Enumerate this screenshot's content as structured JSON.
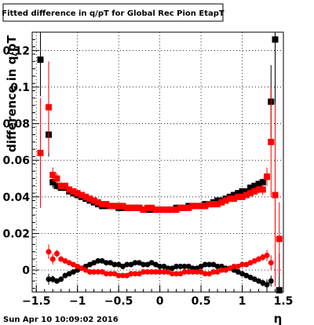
{
  "chart_data": {
    "type": "scatter",
    "title": "Fitted difference in q/pT for Global Rec Pion EtapT",
    "xlabel": "η",
    "ylabel": "difference in q/pT",
    "xlim": [
      -1.55,
      1.5
    ],
    "ylim": [
      -0.012,
      0.13
    ],
    "grid": true,
    "x_ticks": [
      -1.5,
      -1,
      -0.5,
      0,
      0.5,
      1,
      1.5
    ],
    "x_tick_labels": [
      "−1.5",
      "−1",
      "−0.5",
      "0",
      "0.5",
      "1",
      "1.5"
    ],
    "y_ticks": [
      0,
      0.02,
      0.04,
      0.06,
      0.08,
      0.1,
      0.12
    ],
    "y_tick_labels": [
      "0",
      "0.02",
      "0.04",
      "0.06",
      "0.08",
      "0.1",
      "0.12"
    ],
    "series": [
      {
        "color": "#000000",
        "x": [
          -1.45,
          -1.35,
          -1.3,
          -1.25,
          -1.2,
          -1.15,
          -1.1,
          -1.05,
          -1.0,
          -0.95,
          -0.9,
          -0.85,
          -0.8,
          -0.75,
          -0.7,
          -0.65,
          -0.6,
          -0.55,
          -0.5,
          -0.45,
          -0.4,
          -0.35,
          -0.3,
          -0.25,
          -0.2,
          -0.15,
          -0.1,
          -0.05,
          0.0,
          0.05,
          0.1,
          0.15,
          0.2,
          0.25,
          0.3,
          0.35,
          0.4,
          0.45,
          0.5,
          0.55,
          0.6,
          0.65,
          0.7,
          0.75,
          0.8,
          0.85,
          0.9,
          0.95,
          1.0,
          1.05,
          1.1,
          1.15,
          1.2,
          1.25,
          1.3,
          1.35,
          1.4,
          1.45
        ],
        "y": [
          0.115,
          0.074,
          0.048,
          0.046,
          0.045,
          0.045,
          0.043,
          0.042,
          0.041,
          0.04,
          0.039,
          0.038,
          0.037,
          0.036,
          0.035,
          0.035,
          0.035,
          0.035,
          0.034,
          0.034,
          0.034,
          0.034,
          0.034,
          0.034,
          0.033,
          0.033,
          0.033,
          0.033,
          0.033,
          0.033,
          0.033,
          0.033,
          0.034,
          0.034,
          0.034,
          0.035,
          0.035,
          0.035,
          0.035,
          0.036,
          0.036,
          0.037,
          0.038,
          0.038,
          0.039,
          0.04,
          0.041,
          0.042,
          0.043,
          0.043,
          0.045,
          0.046,
          0.047,
          0.048,
          0.051,
          0.092,
          0.126,
          -0.011
        ],
        "yerr": [
          0.02,
          0.012,
          0.003,
          0.002,
          0.0015,
          0.0015,
          0.0012,
          0.001,
          0.001,
          0.001,
          0.001,
          0.001,
          0.001,
          0.001,
          0.001,
          0.001,
          0.001,
          0.001,
          0.001,
          0.001,
          0.001,
          0.001,
          0.001,
          0.001,
          0.001,
          0.001,
          0.001,
          0.001,
          0.001,
          0.001,
          0.001,
          0.001,
          0.001,
          0.001,
          0.001,
          0.001,
          0.001,
          0.001,
          0.001,
          0.001,
          0.001,
          0.001,
          0.001,
          0.001,
          0.001,
          0.001,
          0.001,
          0.001,
          0.001,
          0.0012,
          0.0015,
          0.0015,
          0.002,
          0.002,
          0.003,
          0.02,
          0.04,
          0.02
        ]
      },
      {
        "color": "#ff0000",
        "x": [
          -1.45,
          -1.35,
          -1.3,
          -1.25,
          -1.2,
          -1.15,
          -1.1,
          -1.05,
          -1.0,
          -0.95,
          -0.9,
          -0.85,
          -0.8,
          -0.75,
          -0.7,
          -0.65,
          -0.6,
          -0.55,
          -0.5,
          -0.45,
          -0.4,
          -0.35,
          -0.3,
          -0.25,
          -0.2,
          -0.15,
          -0.1,
          -0.05,
          0.0,
          0.05,
          0.1,
          0.15,
          0.2,
          0.25,
          0.3,
          0.35,
          0.4,
          0.45,
          0.5,
          0.55,
          0.6,
          0.65,
          0.7,
          0.75,
          0.8,
          0.85,
          0.9,
          0.95,
          1.0,
          1.05,
          1.1,
          1.15,
          1.2,
          1.25,
          1.3,
          1.35,
          1.4,
          1.45
        ],
        "y": [
          0.064,
          0.089,
          0.052,
          0.05,
          0.046,
          0.046,
          0.044,
          0.043,
          0.042,
          0.041,
          0.04,
          0.039,
          0.038,
          0.037,
          0.036,
          0.036,
          0.035,
          0.035,
          0.035,
          0.035,
          0.034,
          0.034,
          0.034,
          0.034,
          0.033,
          0.034,
          0.034,
          0.033,
          0.033,
          0.033,
          0.033,
          0.033,
          0.033,
          0.034,
          0.034,
          0.034,
          0.035,
          0.035,
          0.035,
          0.035,
          0.036,
          0.036,
          0.036,
          0.037,
          0.038,
          0.039,
          0.039,
          0.04,
          0.04,
          0.041,
          0.042,
          0.043,
          0.044,
          0.044,
          0.051,
          0.07,
          0.041,
          0.017
        ],
        "yerr": [
          0.03,
          0.025,
          0.004,
          0.003,
          0.002,
          0.0015,
          0.0012,
          0.001,
          0.001,
          0.001,
          0.001,
          0.001,
          0.001,
          0.001,
          0.001,
          0.001,
          0.001,
          0.001,
          0.001,
          0.001,
          0.001,
          0.001,
          0.001,
          0.001,
          0.001,
          0.001,
          0.001,
          0.001,
          0.001,
          0.001,
          0.001,
          0.001,
          0.001,
          0.001,
          0.001,
          0.001,
          0.001,
          0.001,
          0.001,
          0.001,
          0.001,
          0.001,
          0.001,
          0.001,
          0.001,
          0.001,
          0.001,
          0.001,
          0.001,
          0.001,
          0.0012,
          0.0015,
          0.002,
          0.003,
          0.005,
          0.03,
          0.05,
          0.02
        ]
      },
      {
        "color": "#000000",
        "marker": "circle",
        "x": [
          -1.35,
          -1.3,
          -1.25,
          -1.2,
          -1.15,
          -1.1,
          -1.05,
          -1.0,
          -0.95,
          -0.9,
          -0.85,
          -0.8,
          -0.75,
          -0.7,
          -0.65,
          -0.6,
          -0.55,
          -0.5,
          -0.45,
          -0.4,
          -0.35,
          -0.3,
          -0.25,
          -0.2,
          -0.15,
          -0.1,
          -0.05,
          0.0,
          0.05,
          0.1,
          0.15,
          0.2,
          0.25,
          0.3,
          0.35,
          0.4,
          0.45,
          0.5,
          0.55,
          0.6,
          0.65,
          0.7,
          0.75,
          0.8,
          0.85,
          0.9,
          0.95,
          1.0,
          1.05,
          1.1,
          1.15,
          1.2,
          1.25,
          1.3,
          1.35
        ],
        "y": [
          -0.005,
          -0.005,
          -0.006,
          -0.005,
          -0.003,
          -0.002,
          -0.001,
          0.0,
          0.001,
          0.002,
          0.003,
          0.004,
          0.005,
          0.005,
          0.004,
          0.004,
          0.003,
          0.003,
          0.002,
          0.003,
          0.003,
          0.004,
          0.004,
          0.003,
          0.003,
          0.004,
          0.003,
          0.002,
          0.002,
          0.001,
          0.001,
          0.002,
          0.002,
          0.002,
          0.002,
          0.001,
          0.001,
          0.002,
          0.003,
          0.003,
          0.003,
          0.002,
          0.002,
          0.001,
          0.001,
          0.0,
          -0.001,
          -0.002,
          -0.003,
          -0.004,
          -0.005,
          -0.006,
          -0.007,
          -0.008,
          -0.006
        ],
        "yerr": [
          0.003,
          0.002,
          0.0015,
          0.001,
          0.001,
          0.001,
          0.001,
          0.001,
          0.001,
          0.001,
          0.001,
          0.001,
          0.001,
          0.001,
          0.001,
          0.001,
          0.001,
          0.001,
          0.001,
          0.001,
          0.001,
          0.001,
          0.001,
          0.001,
          0.001,
          0.001,
          0.001,
          0.001,
          0.001,
          0.001,
          0.001,
          0.001,
          0.001,
          0.001,
          0.001,
          0.001,
          0.001,
          0.001,
          0.001,
          0.001,
          0.001,
          0.001,
          0.001,
          0.001,
          0.001,
          0.001,
          0.001,
          0.001,
          0.001,
          0.001,
          0.001,
          0.0015,
          0.002,
          0.003,
          0.003
        ]
      },
      {
        "color": "#ff0000",
        "marker": "circle",
        "x": [
          -1.35,
          -1.3,
          -1.25,
          -1.2,
          -1.15,
          -1.1,
          -1.05,
          -1.0,
          -0.95,
          -0.9,
          -0.85,
          -0.8,
          -0.75,
          -0.7,
          -0.65,
          -0.6,
          -0.55,
          -0.5,
          -0.45,
          -0.4,
          -0.35,
          -0.3,
          -0.25,
          -0.2,
          -0.15,
          -0.1,
          -0.05,
          0.0,
          0.05,
          0.1,
          0.15,
          0.2,
          0.25,
          0.3,
          0.35,
          0.4,
          0.45,
          0.5,
          0.55,
          0.6,
          0.65,
          0.7,
          0.75,
          0.8,
          0.85,
          0.9,
          0.95,
          1.0,
          1.05,
          1.1,
          1.15,
          1.2,
          1.25,
          1.3,
          1.35
        ],
        "y": [
          0.01,
          0.006,
          0.009,
          0.006,
          0.005,
          0.004,
          0.003,
          0.002,
          0.001,
          0.0,
          -0.001,
          -0.001,
          -0.001,
          -0.001,
          -0.002,
          -0.002,
          -0.002,
          -0.003,
          -0.003,
          -0.003,
          -0.002,
          -0.002,
          -0.002,
          -0.001,
          -0.001,
          -0.001,
          -0.001,
          -0.001,
          -0.001,
          -0.001,
          -0.002,
          -0.002,
          -0.002,
          -0.001,
          -0.001,
          -0.001,
          -0.001,
          -0.001,
          -0.002,
          -0.002,
          -0.001,
          -0.001,
          0.0,
          0.0,
          0.001,
          0.002,
          0.002,
          0.003,
          0.003,
          0.004,
          0.005,
          0.006,
          0.007,
          0.008,
          0.004
        ],
        "yerr": [
          0.004,
          0.003,
          0.002,
          0.0015,
          0.001,
          0.001,
          0.001,
          0.001,
          0.001,
          0.001,
          0.001,
          0.001,
          0.001,
          0.001,
          0.001,
          0.001,
          0.001,
          0.001,
          0.001,
          0.001,
          0.001,
          0.001,
          0.001,
          0.001,
          0.001,
          0.001,
          0.001,
          0.001,
          0.001,
          0.001,
          0.001,
          0.001,
          0.001,
          0.001,
          0.001,
          0.001,
          0.001,
          0.001,
          0.001,
          0.001,
          0.001,
          0.001,
          0.001,
          0.001,
          0.001,
          0.001,
          0.001,
          0.001,
          0.001,
          0.001,
          0.001,
          0.0015,
          0.002,
          0.003,
          0.004
        ]
      }
    ]
  },
  "footer": {
    "timestamp": "Sun Apr 10 10:09:02 2016"
  }
}
